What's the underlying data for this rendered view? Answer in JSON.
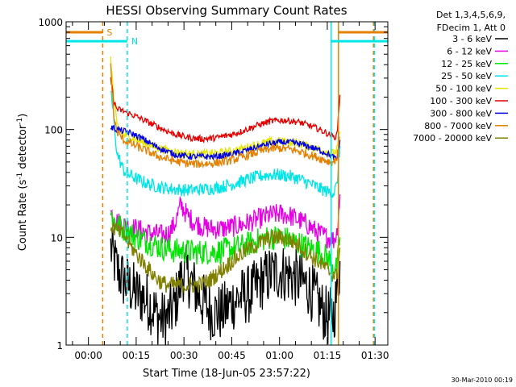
{
  "chart_data": {
    "type": "line",
    "title": "HESSI Observing Summary Count Rates",
    "xlabel": "Start Time (18-Jun-05 23:57:22)",
    "ylabel_pre": "Count Rate (s",
    "ylabel_sup1": "-1",
    "ylabel_mid": " detector",
    "ylabel_sup2": "-1",
    "ylabel_post": ")",
    "x_start_label": "18-Jun-05 23:57:22",
    "x_unit": "minutes",
    "xlim": [
      -4,
      97
    ],
    "ylim": [
      1,
      1000
    ],
    "yscale": "log",
    "x_ticks": [
      {
        "v": 3,
        "label": "00:00"
      },
      {
        "v": 18,
        "label": "00:15"
      },
      {
        "v": 33,
        "label": "00:30"
      },
      {
        "v": 48,
        "label": "00:45"
      },
      {
        "v": 63,
        "label": "01:00"
      },
      {
        "v": 78,
        "label": "01:15"
      },
      {
        "v": 93,
        "label": "01:30"
      }
    ],
    "y_ticks": [
      {
        "v": 1,
        "label": "1"
      },
      {
        "v": 10,
        "label": "10"
      },
      {
        "v": 100,
        "label": "100"
      },
      {
        "v": 1000,
        "label": "1000"
      }
    ],
    "legend_header": [
      "Det 1,3,4,5,6,9,",
      "FDecim 1, Att 0"
    ],
    "legend_position": "right",
    "grid": false,
    "series": [
      {
        "name": "3 - 6 keV",
        "color": "#000000",
        "x": [
          10,
          12,
          14,
          16,
          18,
          20,
          22,
          24,
          26,
          28,
          30,
          33,
          36,
          39,
          42,
          45,
          48,
          51,
          54,
          57,
          60,
          63,
          66,
          69,
          72,
          75,
          78,
          80,
          81,
          82
        ],
        "y": [
          8,
          5,
          4,
          3.5,
          3,
          2.8,
          2.5,
          2,
          1.7,
          1.8,
          2.3,
          5,
          3.5,
          2.5,
          2,
          2,
          2.5,
          2.8,
          3,
          3.8,
          4.5,
          4.8,
          4.5,
          4,
          3.5,
          2.5,
          1.8,
          1.9,
          3,
          6
        ]
      },
      {
        "name": "6 - 12 keV",
        "color": "#e600e6",
        "x": [
          10,
          12,
          14,
          16,
          18,
          20,
          22,
          24,
          26,
          28,
          30,
          31,
          32,
          33,
          34,
          36,
          39,
          42,
          45,
          48,
          51,
          54,
          57,
          60,
          63,
          66,
          69,
          72,
          75,
          78,
          80,
          81,
          82
        ],
        "y": [
          17,
          14,
          13,
          12.5,
          12,
          11.5,
          11,
          10.8,
          10.5,
          10.8,
          13,
          16,
          20,
          18,
          16,
          14,
          12.5,
          12,
          12,
          12.5,
          13,
          14,
          15,
          16,
          16.5,
          16,
          14.5,
          13,
          11,
          10,
          9.5,
          11,
          25
        ]
      },
      {
        "name": "12 - 25 keV",
        "color": "#00e600",
        "x": [
          10,
          12,
          14,
          16,
          18,
          20,
          22,
          24,
          26,
          28,
          30,
          33,
          36,
          39,
          42,
          45,
          48,
          51,
          54,
          57,
          60,
          63,
          66,
          69,
          72,
          75,
          78,
          80,
          81,
          82
        ],
        "y": [
          16,
          13,
          12,
          11,
          10,
          9.5,
          9,
          8.5,
          8,
          7.8,
          7.5,
          7.5,
          7.3,
          7.3,
          7.3,
          7.5,
          7.8,
          8.2,
          8.8,
          9.5,
          10,
          10,
          9.5,
          8.8,
          8,
          7.5,
          6.5,
          5.5,
          5,
          10
        ]
      },
      {
        "name": "25 - 50 keV",
        "color": "#00e6e6",
        "x": [
          10,
          11,
          12,
          14,
          16,
          18,
          20,
          22,
          24,
          26,
          28,
          30,
          33,
          36,
          39,
          42,
          45,
          48,
          51,
          54,
          57,
          60,
          63,
          66,
          69,
          72,
          75,
          78,
          80,
          81,
          82
        ],
        "y": [
          240,
          120,
          60,
          42,
          38,
          35,
          33,
          31,
          30,
          29,
          28.5,
          28,
          27.5,
          27.5,
          28,
          28.5,
          29.5,
          31,
          33,
          35,
          37,
          38,
          38,
          37,
          35,
          32,
          29,
          26.5,
          26,
          30,
          70
        ]
      },
      {
        "name": "50 - 100 keV",
        "color": "#e6e600",
        "x": [
          10,
          11,
          12,
          14,
          16,
          18,
          20,
          22,
          24,
          26,
          28,
          30,
          33,
          36,
          39,
          42,
          45,
          48,
          51,
          54,
          57,
          60,
          63,
          66,
          69,
          72,
          75,
          78,
          80,
          81,
          82
        ],
        "y": [
          480,
          180,
          110,
          90,
          85,
          80,
          76,
          72,
          69,
          66,
          64,
          62,
          60,
          59,
          59,
          60,
          61,
          63,
          66,
          70,
          74,
          77,
          78,
          77,
          74,
          70,
          66,
          62,
          60,
          65,
          95
        ]
      },
      {
        "name": "100 - 300 keV",
        "color": "#e60000",
        "x": [
          10,
          11,
          12,
          14,
          16,
          18,
          20,
          22,
          24,
          26,
          28,
          30,
          33,
          36,
          39,
          42,
          45,
          48,
          51,
          54,
          57,
          60,
          63,
          66,
          69,
          72,
          75,
          78,
          80,
          81,
          82
        ],
        "y": [
          300,
          180,
          155,
          148,
          140,
          132,
          124,
          116,
          109,
          102,
          96,
          91,
          86,
          83,
          82,
          83,
          86,
          90,
          96,
          104,
          112,
          119,
          122,
          121,
          117,
          110,
          102,
          92,
          85,
          88,
          210
        ]
      },
      {
        "name": "300 - 800 keV",
        "color": "#0000e6",
        "x": [
          10,
          12,
          14,
          16,
          18,
          20,
          22,
          24,
          26,
          28,
          30,
          33,
          36,
          39,
          42,
          45,
          48,
          51,
          54,
          57,
          60,
          63,
          66,
          69,
          72,
          75,
          78,
          80,
          81,
          82
        ],
        "y": [
          105,
          100,
          97,
          93,
          88,
          82,
          76,
          70,
          66,
          62,
          59,
          57,
          56,
          56,
          56,
          57,
          59,
          62,
          66,
          70,
          74,
          76,
          76,
          74,
          70,
          65,
          60,
          55,
          52,
          80
        ]
      },
      {
        "name": "800 - 7000 keV",
        "color": "#e68000",
        "x": [
          10,
          11,
          12,
          14,
          16,
          18,
          20,
          22,
          24,
          26,
          28,
          30,
          33,
          36,
          39,
          42,
          45,
          48,
          51,
          54,
          57,
          60,
          63,
          66,
          69,
          72,
          75,
          78,
          80,
          81,
          82
        ],
        "y": [
          380,
          130,
          95,
          80,
          75,
          70,
          66,
          62,
          58,
          55,
          53,
          51,
          49,
          48,
          48,
          48.5,
          50,
          52,
          55,
          59,
          63,
          66,
          67,
          66,
          63,
          59,
          55,
          51,
          50,
          55,
          85
        ]
      },
      {
        "name": "7000 - 20000 keV",
        "color": "#808000",
        "x": [
          10,
          12,
          14,
          16,
          18,
          20,
          22,
          24,
          26,
          28,
          30,
          33,
          36,
          39,
          42,
          45,
          48,
          51,
          54,
          57,
          60,
          63,
          66,
          69,
          72,
          75,
          78,
          80,
          81,
          82
        ],
        "y": [
          13,
          11.5,
          10.5,
          8.5,
          7,
          6,
          5,
          4.3,
          3.8,
          3.6,
          3.6,
          3.6,
          3.6,
          3.7,
          4.2,
          5,
          6,
          7,
          8,
          9,
          9.8,
          10,
          9.5,
          8.5,
          7,
          6,
          5,
          4.5,
          4.3,
          8
        ]
      }
    ],
    "annotations": {
      "saa_label": "S",
      "night_label": "N",
      "saa_color": "#e68000",
      "night_color": "#00e6e6",
      "saa_lines_x": [
        7.5,
        81.5,
        92.5
      ],
      "night_lines_x": [
        15.2,
        79.2,
        92.8
      ],
      "saa_bar_ranges": [
        [
          -4,
          7.5
        ],
        [
          81.5,
          97
        ]
      ],
      "night_bar_ranges": [
        [
          -4,
          15.2
        ],
        [
          79.2,
          97
        ]
      ],
      "saa_bar_level": 800,
      "night_bar_level": 660
    },
    "footer_date": "30-Mar-2010 00:19"
  }
}
